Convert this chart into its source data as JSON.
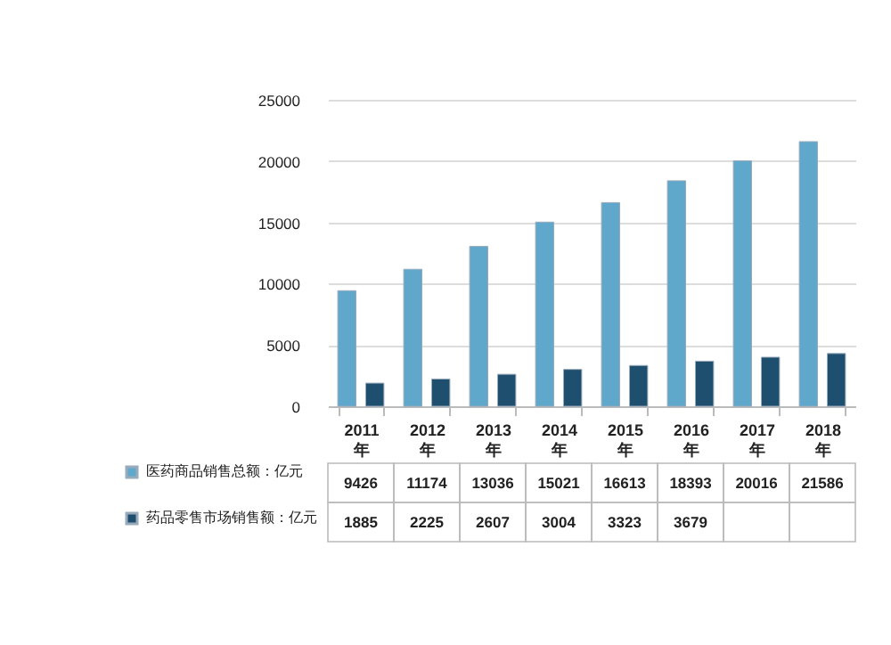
{
  "chart_data": {
    "type": "bar",
    "categories": [
      "2011年",
      "2012年",
      "2013年",
      "2014年",
      "2015年",
      "2016年",
      "2017年",
      "2018年"
    ],
    "series": [
      {
        "name": "医药商品销售总额：亿元",
        "color": "#5fa8cc",
        "values": [
          9426,
          11174,
          13036,
          15021,
          16613,
          18393,
          20016,
          21586
        ],
        "value_labels": [
          "9426",
          "11174",
          "13036",
          "15021",
          "16613",
          "18393",
          "20016",
          "21586"
        ]
      },
      {
        "name": "药品零售市场销售额：亿元",
        "color": "#1f4f6e",
        "values": [
          1885,
          2225,
          2607,
          3004,
          3323,
          3679,
          4000,
          4300
        ],
        "value_labels": [
          "1885",
          "2225",
          "2607",
          "3004",
          "3323",
          "3679",
          null,
          null
        ]
      }
    ],
    "ylim": [
      0,
      25000
    ],
    "yticks": [
      0,
      5000,
      10000,
      15000,
      20000,
      25000
    ],
    "grid": "y",
    "legend": "bottom"
  }
}
